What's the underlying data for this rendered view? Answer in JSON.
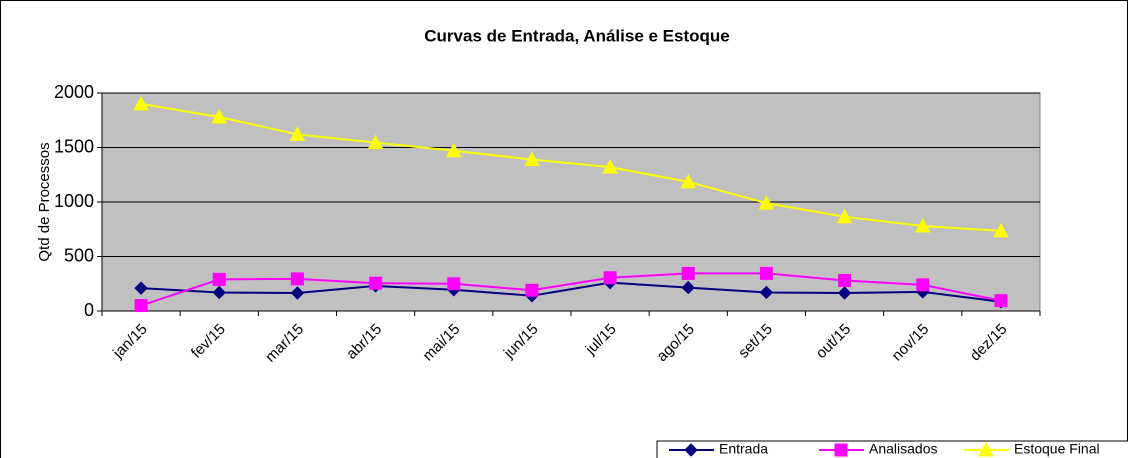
{
  "chart_data": {
    "type": "line",
    "title": "Curvas de Entrada, Análise e Estoque",
    "y_label": "Qtd de Processos",
    "categories": [
      "jan/15",
      "fev/15",
      "mar/15",
      "abr/15",
      "mai/15",
      "jun/15",
      "jul/15",
      "ago/15",
      "set/15",
      "out/15",
      "nov/15",
      "dez/15"
    ],
    "series": [
      {
        "name": "Entrada",
        "color": "#000080",
        "marker": "diamond",
        "values": [
          210,
          170,
          165,
          230,
          195,
          140,
          260,
          215,
          170,
          165,
          175,
          85
        ]
      },
      {
        "name": "Analisados",
        "color": "#ff00ff",
        "marker": "square",
        "values": [
          50,
          290,
          295,
          255,
          250,
          190,
          305,
          345,
          345,
          280,
          240,
          95
        ]
      },
      {
        "name": "Estoque Final",
        "color": "#ffff00",
        "marker": "triangle",
        "values": [
          1900,
          1780,
          1620,
          1545,
          1470,
          1390,
          1320,
          1185,
          990,
          865,
          780,
          735
        ]
      }
    ],
    "ylim": [
      0,
      2000
    ],
    "yticks": [
      0,
      500,
      1000,
      1500,
      2000
    ],
    "grid": true,
    "legend": "bottom-right"
  }
}
